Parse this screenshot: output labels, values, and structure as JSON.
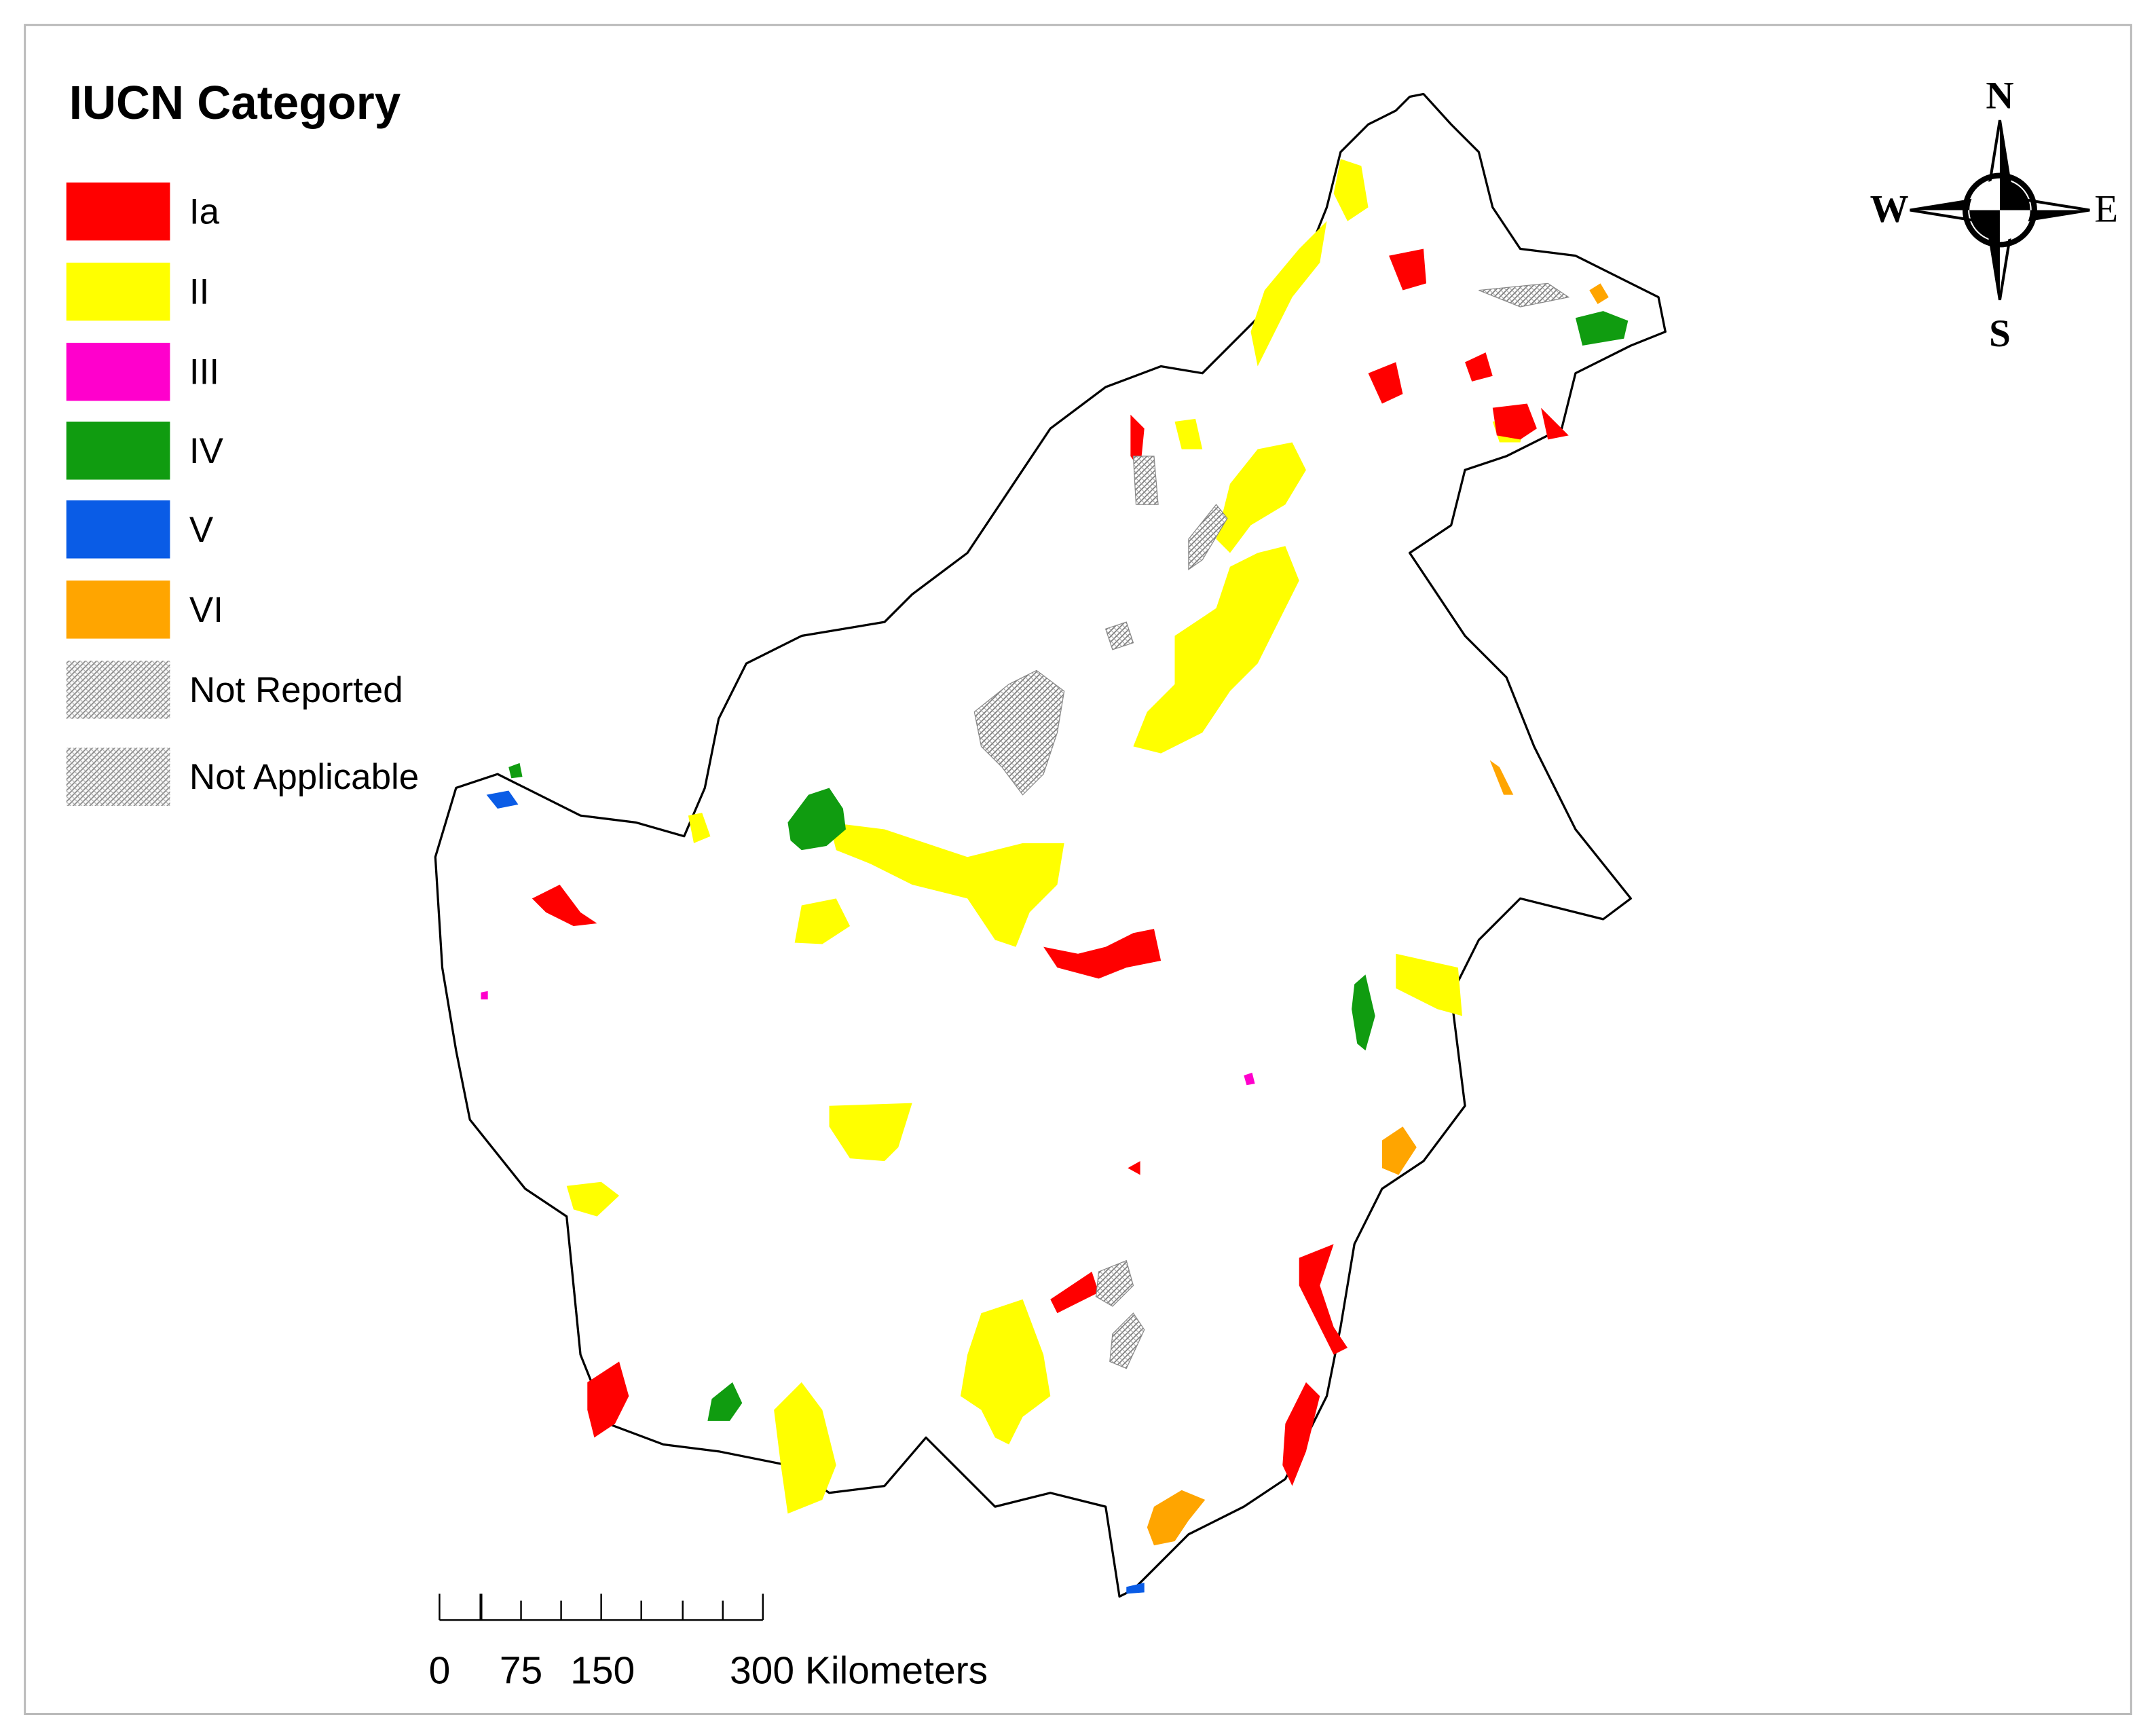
{
  "legend": {
    "title": "IUCN Category",
    "entries": [
      {
        "label": "Ia",
        "color": "#ff0000"
      },
      {
        "label": "II",
        "color": "#ffff00"
      },
      {
        "label": "III",
        "color": "#ff00cc"
      },
      {
        "label": "IV",
        "color": "#109c10"
      },
      {
        "label": "V",
        "color": "#0a5ce6"
      },
      {
        "label": "VI",
        "color": "#ffa500"
      },
      {
        "label": "Not Reported",
        "color": "#d4d4d4",
        "hatched": true
      },
      {
        "label": "Not Applicable",
        "color": "#d4d4d4",
        "hatched": true
      }
    ]
  },
  "compass": {
    "north": "N",
    "south": "S",
    "east": "E",
    "west": "W"
  },
  "scale_bar": {
    "labels": [
      "0",
      "75",
      "150",
      "300 Kilometers"
    ]
  }
}
